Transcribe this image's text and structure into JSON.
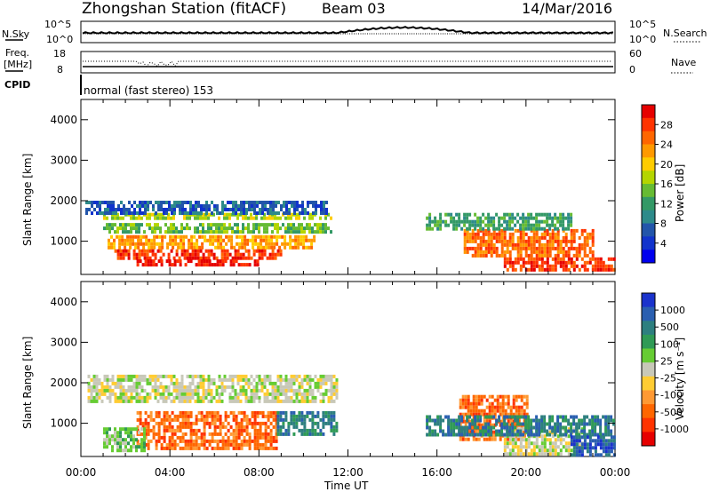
{
  "header": {
    "station": "Zhongshan Station (fitACF)",
    "beam": "Beam 03",
    "date": "14/Mar/2016"
  },
  "top_panels": {
    "nsky_label": "N.Sky",
    "nsky_ticks": [
      "10^5",
      "10^0"
    ],
    "nsearch_label": "N.Search",
    "nsearch_ticks": [
      "10^5",
      "10^0"
    ],
    "freq_label": "Freq.",
    "freq_unit": "[MHz]",
    "freq_ticks": [
      "18",
      "8"
    ],
    "nave_label": "Nave",
    "nave_ticks": [
      "60",
      "0"
    ],
    "cpid_label": "CPID",
    "cpid_text": "normal (fast stereo) 153"
  },
  "chart_data": [
    {
      "type": "heatmap",
      "name": "power",
      "ylabel": "Slant Range [km]",
      "ylim": [
        180,
        4500
      ],
      "yticks": [
        "4000",
        "3000",
        "2000",
        "1000"
      ],
      "xlim_hours": [
        0,
        24
      ],
      "colorbar": {
        "title": "Power [dB]",
        "ticks": [
          "28",
          "24",
          "20",
          "16",
          "12",
          "8",
          "4"
        ],
        "colors": [
          "#e60000",
          "#ff3300",
          "#ff6600",
          "#ff9900",
          "#ffcc00",
          "#b4d500",
          "#66bb33",
          "#339966",
          "#2d8a8a",
          "#2255aa",
          "#1133cc",
          "#0000ee"
        ]
      },
      "bands": [
        {
          "t": [
            1.0,
            11.2
          ],
          "r": [
            1550,
            1700
          ],
          "c": 5
        },
        {
          "t": [
            1.0,
            11.2
          ],
          "r": [
            1200,
            1450
          ],
          "c": 6
        },
        {
          "t": [
            1.2,
            10.5
          ],
          "r": [
            850,
            1150
          ],
          "c": 3
        },
        {
          "t": [
            1.5,
            9.0
          ],
          "r": [
            550,
            800
          ],
          "c": 1
        },
        {
          "t": [
            2.5,
            8.0
          ],
          "r": [
            400,
            550
          ],
          "c": 0
        },
        {
          "t": [
            0.2,
            11.0
          ],
          "r": [
            1700,
            2000
          ],
          "c": 9
        },
        {
          "t": [
            17.2,
            23.0
          ],
          "r": [
            600,
            1300
          ],
          "c": 2
        },
        {
          "t": [
            19.0,
            24.0
          ],
          "r": [
            250,
            600
          ],
          "c": 1
        },
        {
          "t": [
            15.5,
            22.0
          ],
          "r": [
            1300,
            1700
          ],
          "c": 7
        }
      ]
    },
    {
      "type": "heatmap",
      "name": "velocity",
      "ylabel": "Slant Range [km]",
      "xlabel": "Time UT",
      "ylim": [
        180,
        4500
      ],
      "yticks": [
        "4000",
        "3000",
        "2000",
        "1000"
      ],
      "xticks": [
        "00:00",
        "04:00",
        "08:00",
        "12:00",
        "16:00",
        "20:00",
        "00:00"
      ],
      "xlim_hours": [
        0,
        24
      ],
      "colorbar": {
        "title": "Velocity [m s⁻¹]",
        "ticks": [
          "1000",
          "500",
          "100",
          "25",
          "-25",
          "-100",
          "-500",
          "-1000"
        ],
        "colors": [
          "#1a33cc",
          "#2a5fb0",
          "#2d7f7f",
          "#2f9a55",
          "#66cc33",
          "#c8c8b8",
          "#ffcc33",
          "#ff9933",
          "#ff6600",
          "#ff3300",
          "#e60000"
        ]
      },
      "bands": [
        {
          "t": [
            0.3,
            11.5
          ],
          "r": [
            1500,
            2200
          ],
          "c": 5
        },
        {
          "t": [
            2.5,
            8.8
          ],
          "r": [
            400,
            1300
          ],
          "c": 8
        },
        {
          "t": [
            1.0,
            2.8
          ],
          "r": [
            300,
            900
          ],
          "c": 4
        },
        {
          "t": [
            8.8,
            11.5
          ],
          "r": [
            700,
            1300
          ],
          "c": 2
        },
        {
          "t": [
            17.0,
            20.0
          ],
          "r": [
            600,
            1700
          ],
          "c": 8
        },
        {
          "t": [
            19.0,
            22.5
          ],
          "r": [
            200,
            900
          ],
          "c": 5
        },
        {
          "t": [
            15.5,
            24.0
          ],
          "r": [
            700,
            1200
          ],
          "c": 2
        },
        {
          "t": [
            22.0,
            24.0
          ],
          "r": [
            200,
            700
          ],
          "c": 1
        }
      ]
    }
  ]
}
